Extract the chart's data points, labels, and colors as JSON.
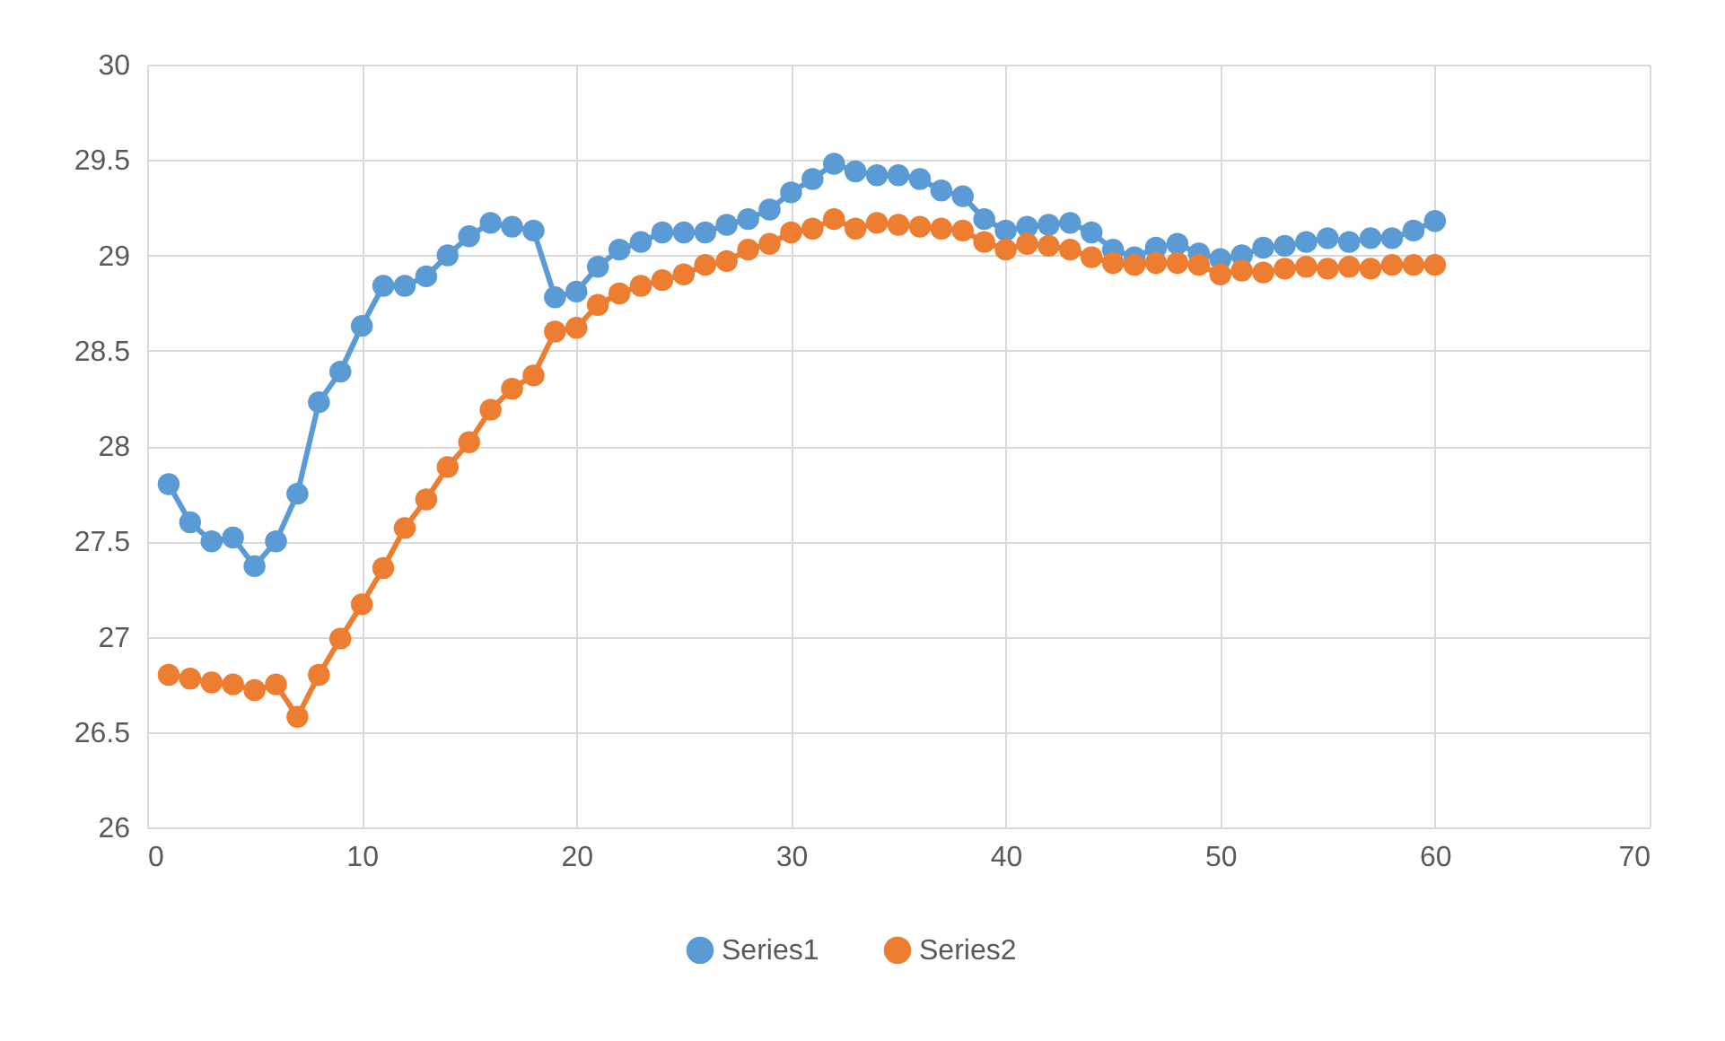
{
  "chart_data": {
    "type": "line",
    "x": [
      1,
      2,
      3,
      4,
      5,
      6,
      7,
      8,
      9,
      10,
      11,
      12,
      13,
      14,
      15,
      16,
      17,
      18,
      19,
      20,
      21,
      22,
      23,
      24,
      25,
      26,
      27,
      28,
      29,
      30,
      31,
      32,
      33,
      34,
      35,
      36,
      37,
      38,
      39,
      40,
      41,
      42,
      43,
      44,
      45,
      46,
      47,
      48,
      49,
      50,
      51,
      52,
      53,
      54,
      55,
      56,
      57,
      58,
      59,
      60
    ],
    "series": [
      {
        "name": "Series1",
        "color": "#5b9bd5",
        "values": [
          27.8,
          27.6,
          27.5,
          27.52,
          27.37,
          27.5,
          27.75,
          28.23,
          28.39,
          28.63,
          28.84,
          28.84,
          28.89,
          29.0,
          29.1,
          29.17,
          29.15,
          29.13,
          28.78,
          28.81,
          28.94,
          29.03,
          29.07,
          29.12,
          29.12,
          29.12,
          29.16,
          29.19,
          29.24,
          29.33,
          29.4,
          29.48,
          29.44,
          29.42,
          29.42,
          29.4,
          29.34,
          29.31,
          29.19,
          29.13,
          29.15,
          29.16,
          29.17,
          29.12,
          29.03,
          28.99,
          29.04,
          29.06,
          29.01,
          28.98,
          29.0,
          29.04,
          29.05,
          29.07,
          29.09,
          29.07,
          29.09,
          29.09,
          29.13,
          29.18
        ]
      },
      {
        "name": "Series2",
        "color": "#ed7d31",
        "values": [
          26.8,
          26.78,
          26.76,
          26.75,
          26.72,
          26.75,
          26.58,
          26.8,
          26.99,
          27.17,
          27.36,
          27.57,
          27.72,
          27.89,
          28.02,
          28.19,
          28.3,
          28.37,
          28.6,
          28.62,
          28.74,
          28.8,
          28.84,
          28.87,
          28.9,
          28.95,
          28.97,
          29.03,
          29.06,
          29.12,
          29.14,
          29.19,
          29.14,
          29.17,
          29.16,
          29.15,
          29.14,
          29.13,
          29.07,
          29.03,
          29.06,
          29.05,
          29.03,
          28.99,
          28.96,
          28.95,
          28.96,
          28.96,
          28.95,
          28.9,
          28.92,
          28.91,
          28.93,
          28.94,
          28.93,
          28.94,
          28.93,
          28.95,
          28.95,
          28.95
        ]
      }
    ],
    "xlim": [
      0,
      70
    ],
    "xticks": [
      0,
      10,
      20,
      30,
      40,
      50,
      60,
      70
    ],
    "ylim": [
      26,
      30
    ],
    "yticks": [
      26,
      26.5,
      27,
      27.5,
      28,
      28.5,
      29,
      29.5,
      30
    ],
    "grid": true,
    "legend": "bottom",
    "marker": "circle",
    "line_style": "solid"
  }
}
